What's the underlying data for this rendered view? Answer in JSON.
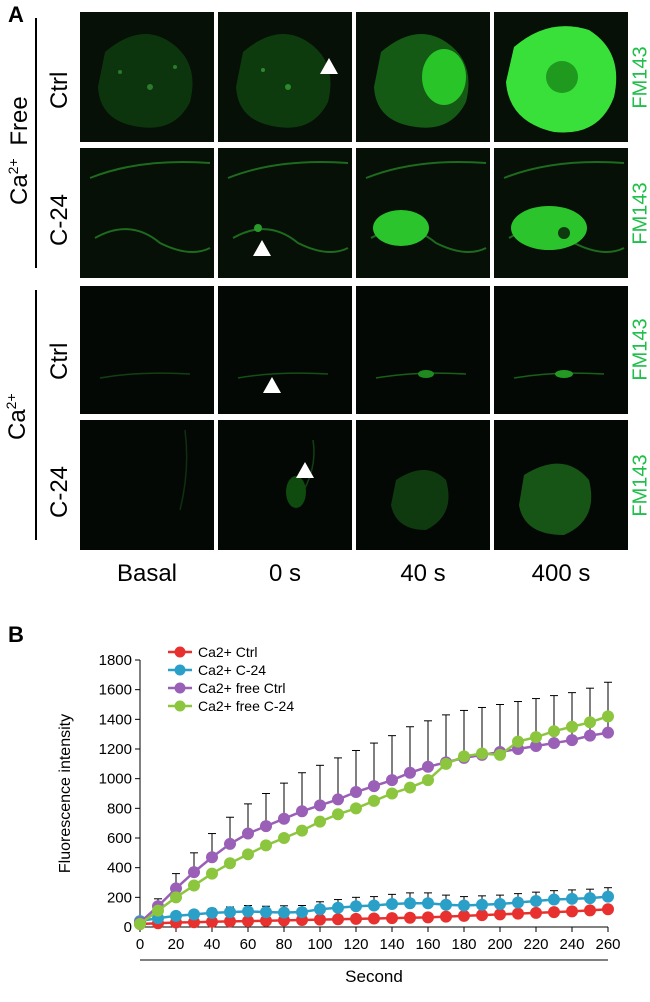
{
  "panel_a": {
    "letter": "A",
    "group_free": {
      "label_ca": "Ca",
      "label_sup": "2+",
      "label_free": "Free"
    },
    "group_ca": {
      "label_ca": "Ca",
      "label_sup": "2+"
    },
    "rows": [
      {
        "label": "Ctrl",
        "stain": "FM143"
      },
      {
        "label": "C-24",
        "stain": "FM143"
      },
      {
        "label": "Ctrl",
        "stain": "FM143"
      },
      {
        "label": "C-24",
        "stain": "FM143"
      }
    ],
    "columns": [
      "Basal",
      "0 s",
      "40 s",
      "400 s"
    ]
  },
  "panel_b": {
    "letter": "B"
  },
  "chart_data": {
    "type": "line",
    "title": "",
    "xlabel": "Second",
    "ylabel": "Fluorescence intensity",
    "xlim": [
      0,
      260
    ],
    "ylim": [
      0,
      1800
    ],
    "xticks": [
      0,
      20,
      40,
      60,
      80,
      100,
      120,
      140,
      160,
      180,
      200,
      220,
      240,
      260
    ],
    "yticks": [
      0,
      200,
      400,
      600,
      800,
      1000,
      1200,
      1400,
      1600,
      1800
    ],
    "legend_position": "top-left",
    "grid": false,
    "x": [
      0,
      10,
      20,
      30,
      40,
      50,
      60,
      70,
      80,
      90,
      100,
      110,
      120,
      130,
      140,
      150,
      160,
      170,
      180,
      190,
      200,
      210,
      220,
      230,
      240,
      250,
      260
    ],
    "series": [
      {
        "name": "Ca2+  Ctrl",
        "color": "#e8312f",
        "values": [
          20,
          25,
          30,
          32,
          35,
          38,
          40,
          42,
          45,
          47,
          50,
          52,
          55,
          57,
          60,
          62,
          65,
          70,
          75,
          80,
          85,
          90,
          95,
          100,
          105,
          112,
          120
        ],
        "error": [
          0,
          0,
          0,
          0,
          0,
          0,
          0,
          0,
          0,
          0,
          0,
          0,
          0,
          0,
          0,
          0,
          0,
          0,
          0,
          0,
          0,
          0,
          0,
          0,
          0,
          0,
          0
        ]
      },
      {
        "name": "Ca2+  C-24",
        "color": "#2aa0c8",
        "values": [
          40,
          60,
          75,
          85,
          95,
          100,
          105,
          100,
          98,
          100,
          120,
          130,
          140,
          145,
          155,
          160,
          160,
          150,
          145,
          150,
          155,
          165,
          175,
          185,
          190,
          195,
          205
        ],
        "error": [
          20,
          20,
          25,
          25,
          30,
          35,
          40,
          40,
          45,
          45,
          50,
          55,
          60,
          60,
          65,
          70,
          70,
          65,
          60,
          60,
          60,
          60,
          60,
          60,
          60,
          60,
          60
        ]
      },
      {
        "name": "Ca2+  free Ctrl",
        "color": "#9a5fb6",
        "values": [
          30,
          140,
          260,
          370,
          470,
          560,
          630,
          680,
          730,
          780,
          820,
          860,
          910,
          950,
          990,
          1040,
          1080,
          1110,
          1140,
          1160,
          1180,
          1200,
          1220,
          1240,
          1260,
          1290,
          1310
        ],
        "error": [
          20,
          50,
          100,
          130,
          160,
          180,
          200,
          220,
          240,
          260,
          270,
          280,
          280,
          290,
          300,
          310,
          310,
          320,
          320,
          320,
          320,
          320,
          320,
          320,
          320,
          320,
          340
        ]
      },
      {
        "name": "Ca2+  free C-24",
        "color": "#8cc63e",
        "values": [
          20,
          110,
          200,
          280,
          360,
          430,
          490,
          550,
          600,
          650,
          710,
          760,
          800,
          850,
          900,
          940,
          990,
          1100,
          1150,
          1170,
          1160,
          1250,
          1280,
          1320,
          1350,
          1380,
          1420
        ],
        "error": [
          0,
          0,
          0,
          0,
          0,
          0,
          0,
          0,
          0,
          0,
          0,
          0,
          0,
          0,
          0,
          0,
          0,
          0,
          0,
          0,
          0,
          0,
          0,
          0,
          0,
          0,
          0
        ]
      }
    ]
  }
}
